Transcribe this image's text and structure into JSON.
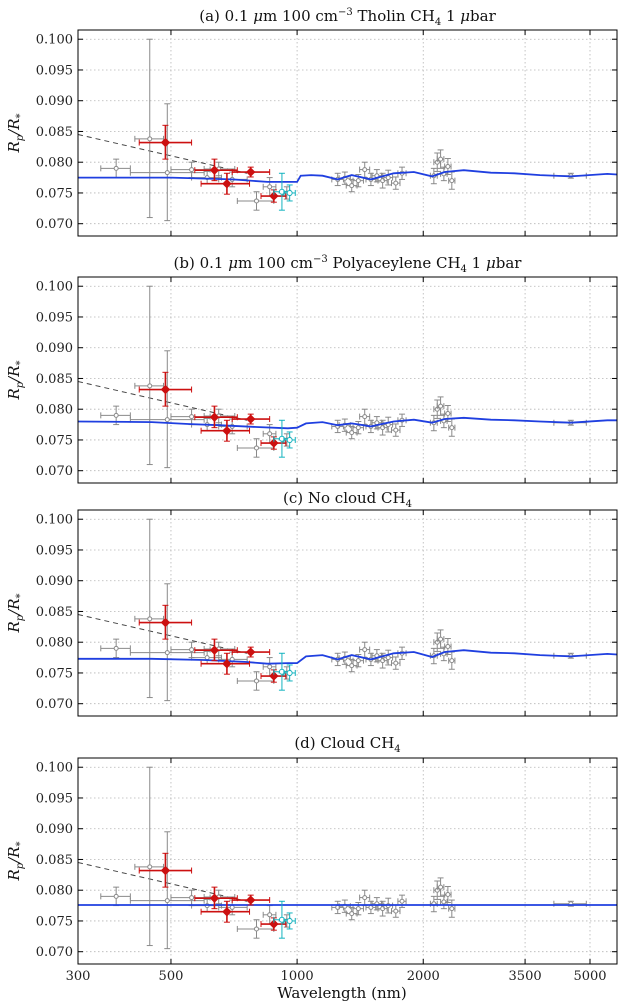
{
  "figure": {
    "xlabel": "Wavelength (nm)",
    "ylabel_main": "R",
    "ylabel_sub1": "p",
    "ylabel_sep": "/R",
    "ylabel_sub2": "*"
  },
  "chart_data": [
    {
      "type": "line",
      "title": {
        "pre": "(a) 0.1 ",
        "mu": "μ",
        "mid": "m 100 cm",
        "sup": "−3",
        "post": " Tholin CH",
        "sub": "4",
        "tail": " 1 ",
        "mu2": "μ",
        "end": "bar"
      },
      "model": [
        [
          300,
          0.0775
        ],
        [
          500,
          0.0775
        ],
        [
          700,
          0.0772
        ],
        [
          850,
          0.0768
        ],
        [
          920,
          0.0768
        ],
        [
          1000,
          0.0768
        ],
        [
          1020,
          0.0778
        ],
        [
          1080,
          0.0779
        ],
        [
          1150,
          0.0778
        ],
        [
          1250,
          0.0772
        ],
        [
          1350,
          0.0779
        ],
        [
          1500,
          0.0772
        ],
        [
          1700,
          0.0782
        ],
        [
          1900,
          0.0784
        ],
        [
          2100,
          0.0777
        ],
        [
          2250,
          0.0784
        ],
        [
          2500,
          0.0787
        ],
        [
          2900,
          0.0783
        ],
        [
          3300,
          0.0782
        ],
        [
          3800,
          0.0779
        ],
        [
          4500,
          0.0777
        ],
        [
          5500,
          0.0781
        ],
        [
          5800,
          0.078
        ]
      ]
    },
    {
      "type": "line",
      "title": {
        "pre": "(b) 0.1 ",
        "mu": "μ",
        "mid": "m 100 cm",
        "sup": "−3",
        "post": " Polyaceylene CH",
        "sub": "4",
        "tail": " 1 ",
        "mu2": "μ",
        "end": "bar"
      },
      "model": [
        [
          300,
          0.078
        ],
        [
          450,
          0.0779
        ],
        [
          550,
          0.0776
        ],
        [
          650,
          0.0774
        ],
        [
          800,
          0.0771
        ],
        [
          950,
          0.0769
        ],
        [
          1000,
          0.077
        ],
        [
          1050,
          0.0777
        ],
        [
          1150,
          0.0779
        ],
        [
          1250,
          0.0774
        ],
        [
          1350,
          0.0777
        ],
        [
          1500,
          0.0772
        ],
        [
          1700,
          0.078
        ],
        [
          1900,
          0.0783
        ],
        [
          2100,
          0.0778
        ],
        [
          2250,
          0.0784
        ],
        [
          2500,
          0.0786
        ],
        [
          2900,
          0.0783
        ],
        [
          3300,
          0.0782
        ],
        [
          3800,
          0.078
        ],
        [
          4500,
          0.0778
        ],
        [
          5500,
          0.0782
        ],
        [
          5800,
          0.0782
        ]
      ]
    },
    {
      "type": "line",
      "title": {
        "pre": "(c) No cloud CH",
        "sub": "4"
      },
      "model": [
        [
          300,
          0.0773
        ],
        [
          450,
          0.0773
        ],
        [
          600,
          0.0771
        ],
        [
          750,
          0.0768
        ],
        [
          850,
          0.0765
        ],
        [
          950,
          0.0766
        ],
        [
          1000,
          0.0766
        ],
        [
          1050,
          0.0777
        ],
        [
          1150,
          0.0779
        ],
        [
          1250,
          0.0772
        ],
        [
          1350,
          0.0779
        ],
        [
          1500,
          0.0772
        ],
        [
          1700,
          0.0782
        ],
        [
          1900,
          0.0784
        ],
        [
          2100,
          0.0776
        ],
        [
          2250,
          0.0784
        ],
        [
          2500,
          0.0787
        ],
        [
          2900,
          0.0783
        ],
        [
          3300,
          0.0782
        ],
        [
          3800,
          0.0779
        ],
        [
          4500,
          0.0777
        ],
        [
          5500,
          0.0781
        ],
        [
          5800,
          0.078
        ]
      ]
    },
    {
      "type": "line",
      "title": {
        "pre": "(d) Cloud CH",
        "sub": "4"
      },
      "model": [
        [
          300,
          0.0776
        ],
        [
          5800,
          0.0776
        ]
      ]
    }
  ],
  "axes": {
    "xlim": [
      300,
      5800
    ],
    "xscale": "log",
    "ylim": [
      0.068,
      0.1015
    ],
    "yticks": [
      0.07,
      0.075,
      0.08,
      0.085,
      0.09,
      0.095,
      0.1
    ],
    "ytick_labels": [
      "0.070",
      "0.075",
      "0.080",
      "0.085",
      "0.090",
      "0.095",
      "0.100"
    ],
    "xticks": [
      300,
      500,
      1000,
      2000,
      3500,
      5000
    ],
    "xtick_labels": [
      "300",
      "500",
      "1000",
      "2000",
      "3500",
      "5000"
    ],
    "grid": true
  },
  "observations": {
    "gray": [
      {
        "x": 370,
        "xerr": [
          340,
          400
        ],
        "y": 0.079,
        "yerr": [
          0.0775,
          0.0805
        ]
      },
      {
        "x": 445,
        "xerr": [
          410,
          480
        ],
        "y": 0.0838,
        "yerr": [
          0.071,
          0.1
        ]
      },
      {
        "x": 490,
        "xerr": [
          400,
          600
        ],
        "y": 0.0783,
        "yerr": [
          0.0705,
          0.0895
        ]
      },
      {
        "x": 560,
        "xerr": [
          500,
          620
        ],
        "y": 0.0788,
        "yerr": [
          0.0775,
          0.08
        ]
      },
      {
        "x": 610,
        "xerr": [
          560,
          660
        ],
        "y": 0.0775,
        "yerr": [
          0.0765,
          0.0785
        ]
      },
      {
        "x": 650,
        "xerr": [
          600,
          710
        ],
        "y": 0.0789,
        "yerr": [
          0.0778,
          0.08
        ]
      },
      {
        "x": 700,
        "xerr": [
          650,
          760
        ],
        "y": 0.0772,
        "yerr": [
          0.076,
          0.0784
        ]
      },
      {
        "x": 800,
        "xerr": [
          720,
          880
        ],
        "y": 0.0737,
        "yerr": [
          0.0722,
          0.0752
        ]
      },
      {
        "x": 860,
        "xerr": [
          830,
          890
        ],
        "y": 0.076,
        "yerr": [
          0.0745,
          0.0775
        ]
      },
      {
        "x": 945,
        "xerr": [
          925,
          965
        ],
        "y": 0.075,
        "yerr": [
          0.074,
          0.076
        ]
      },
      {
        "x": 1250,
        "xerr": [
          1210,
          1290
        ],
        "y": 0.0772,
        "yerr": [
          0.0762,
          0.0782
        ]
      },
      {
        "x": 1300,
        "xerr": [
          1260,
          1340
        ],
        "y": 0.0774,
        "yerr": [
          0.0764,
          0.0784
        ]
      },
      {
        "x": 1350,
        "xerr": [
          1310,
          1390
        ],
        "y": 0.0762,
        "yerr": [
          0.0752,
          0.0772
        ]
      },
      {
        "x": 1400,
        "xerr": [
          1360,
          1440
        ],
        "y": 0.077,
        "yerr": [
          0.076,
          0.078
        ]
      },
      {
        "x": 1450,
        "xerr": [
          1410,
          1490
        ],
        "y": 0.0788,
        "yerr": [
          0.0775,
          0.08
        ]
      },
      {
        "x": 1500,
        "xerr": [
          1460,
          1540
        ],
        "y": 0.0772,
        "yerr": [
          0.0762,
          0.0782
        ]
      },
      {
        "x": 1550,
        "xerr": [
          1510,
          1590
        ],
        "y": 0.0778,
        "yerr": [
          0.0768,
          0.0788
        ]
      },
      {
        "x": 1600,
        "xerr": [
          1560,
          1640
        ],
        "y": 0.077,
        "yerr": [
          0.0758,
          0.0782
        ]
      },
      {
        "x": 1650,
        "xerr": [
          1610,
          1690
        ],
        "y": 0.0775,
        "yerr": [
          0.0763,
          0.0787
        ]
      },
      {
        "x": 1720,
        "xerr": [
          1680,
          1760
        ],
        "y": 0.0766,
        "yerr": [
          0.0756,
          0.0776
        ]
      },
      {
        "x": 1780,
        "xerr": [
          1740,
          1820
        ],
        "y": 0.0782,
        "yerr": [
          0.0772,
          0.0792
        ]
      },
      {
        "x": 2120,
        "xerr": [
          2080,
          2160
        ],
        "y": 0.0778,
        "yerr": [
          0.0765,
          0.079
        ]
      },
      {
        "x": 2160,
        "xerr": [
          2120,
          2200
        ],
        "y": 0.08,
        "yerr": [
          0.0785,
          0.0815
        ]
      },
      {
        "x": 2200,
        "xerr": [
          2160,
          2240
        ],
        "y": 0.0805,
        "yerr": [
          0.079,
          0.082
        ]
      },
      {
        "x": 2240,
        "xerr": [
          2200,
          2280
        ],
        "y": 0.0781,
        "yerr": [
          0.077,
          0.0792
        ]
      },
      {
        "x": 2290,
        "xerr": [
          2250,
          2330
        ],
        "y": 0.0793,
        "yerr": [
          0.078,
          0.0806
        ]
      },
      {
        "x": 2340,
        "xerr": [
          2300,
          2380
        ],
        "y": 0.077,
        "yerr": [
          0.0756,
          0.0784
        ]
      },
      {
        "x": 4500,
        "xerr": [
          4100,
          4900
        ],
        "y": 0.0778,
        "yerr": [
          0.0774,
          0.0782
        ]
      }
    ],
    "red": [
      {
        "x": 485,
        "xerr": [
          420,
          560
        ],
        "y": 0.0832,
        "yerr": [
          0.0805,
          0.086
        ]
      },
      {
        "x": 635,
        "xerr": [
          570,
          720
        ],
        "y": 0.0787,
        "yerr": [
          0.077,
          0.0805
        ]
      },
      {
        "x": 680,
        "xerr": [
          590,
          770
        ],
        "y": 0.0765,
        "yerr": [
          0.0748,
          0.0782
        ]
      },
      {
        "x": 775,
        "xerr": [
          700,
          860
        ],
        "y": 0.0784,
        "yerr": [
          0.0776,
          0.0792
        ]
      },
      {
        "x": 880,
        "xerr": [
          820,
          940
        ],
        "y": 0.0745,
        "yerr": [
          0.0735,
          0.0755
        ]
      }
    ],
    "cyan": [
      {
        "x": 920,
        "xerr": [
          880,
          960
        ],
        "y": 0.0752,
        "yerr": [
          0.0722,
          0.0782
        ]
      },
      {
        "x": 960,
        "xerr": [
          930,
          990
        ],
        "y": 0.075,
        "yerr": [
          0.0737,
          0.0763
        ]
      }
    ],
    "trend": [
      [
        300,
        0.0845
      ],
      [
        760,
        0.0782
      ]
    ]
  },
  "colors": {
    "model": "#1f3fe0",
    "red": "#cc1010",
    "gray": "#8a8a8a",
    "cyan": "#14b3bf",
    "trend": "#444444"
  }
}
